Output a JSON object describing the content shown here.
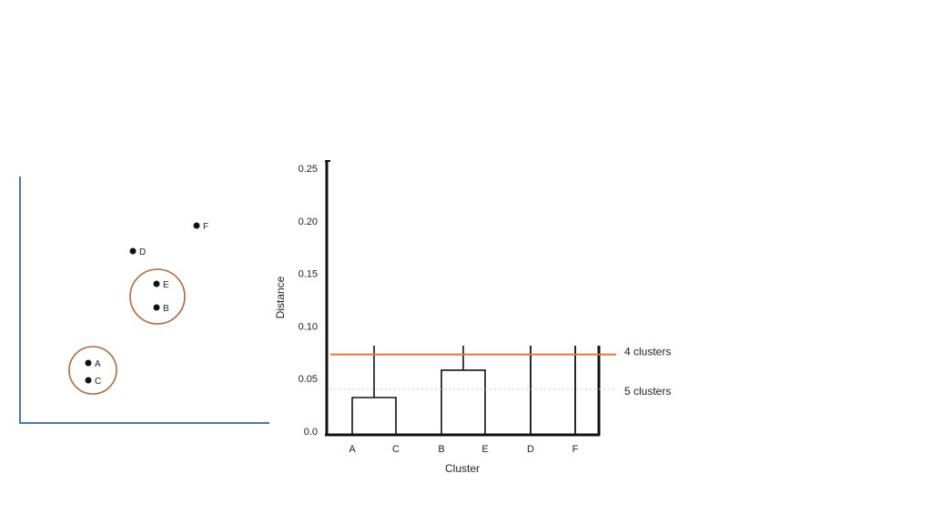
{
  "scatter": {
    "points": [
      {
        "label": "F"
      },
      {
        "label": "D"
      },
      {
        "label": "E"
      },
      {
        "label": "B"
      },
      {
        "label": "A"
      },
      {
        "label": "C"
      }
    ]
  },
  "colors": {
    "axis_blue": "#4a78b5",
    "cluster_brown": "#b0683a",
    "threshold_orange": "#e0773a",
    "ink": "#111111"
  },
  "chart_data": {
    "type": "dendrogram",
    "title": "",
    "xlabel": "Cluster",
    "ylabel": "Distance",
    "ylim": [
      0,
      0.25
    ],
    "y_ticks": [
      "0.0",
      "0.05",
      "0.10",
      "0.15",
      "0.20",
      "0.25"
    ],
    "leaves": [
      "A",
      "C",
      "B",
      "E",
      "D",
      "F"
    ],
    "merges": [
      {
        "left": "A",
        "right": "C",
        "height": 0.032
      },
      {
        "left": "B",
        "right": "E",
        "height": 0.058
      }
    ],
    "thresholds": [
      {
        "label": "4 clusters",
        "value": 0.073
      },
      {
        "label": "5 clusters",
        "value": 0.04
      }
    ]
  }
}
